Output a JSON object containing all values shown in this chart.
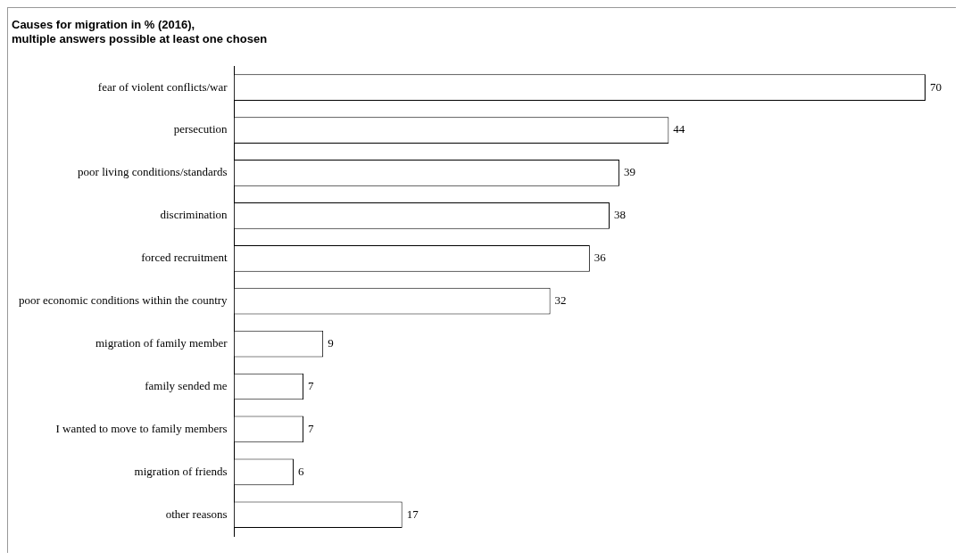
{
  "chart_data": {
    "type": "bar",
    "orientation": "horizontal",
    "title": "Causes for migration in % (2016),",
    "subtitle": "multiple answers possible at least one chosen",
    "categories": [
      "fear of violent conflicts/war",
      "persecution",
      "poor living conditions/standards",
      "discrimination",
      "forced recruitment",
      "poor economic conditions within the country",
      "migration of family member",
      "family sended me",
      "I wanted to move to family members",
      "migration of friends",
      "other reasons"
    ],
    "values": [
      70,
      44,
      39,
      38,
      36,
      32,
      9,
      7,
      7,
      6,
      17
    ],
    "color": "#ffffff",
    "xlim": [
      0,
      70
    ],
    "tick_labels": "y",
    "grid": false,
    "legend": false,
    "data_labels": true
  }
}
